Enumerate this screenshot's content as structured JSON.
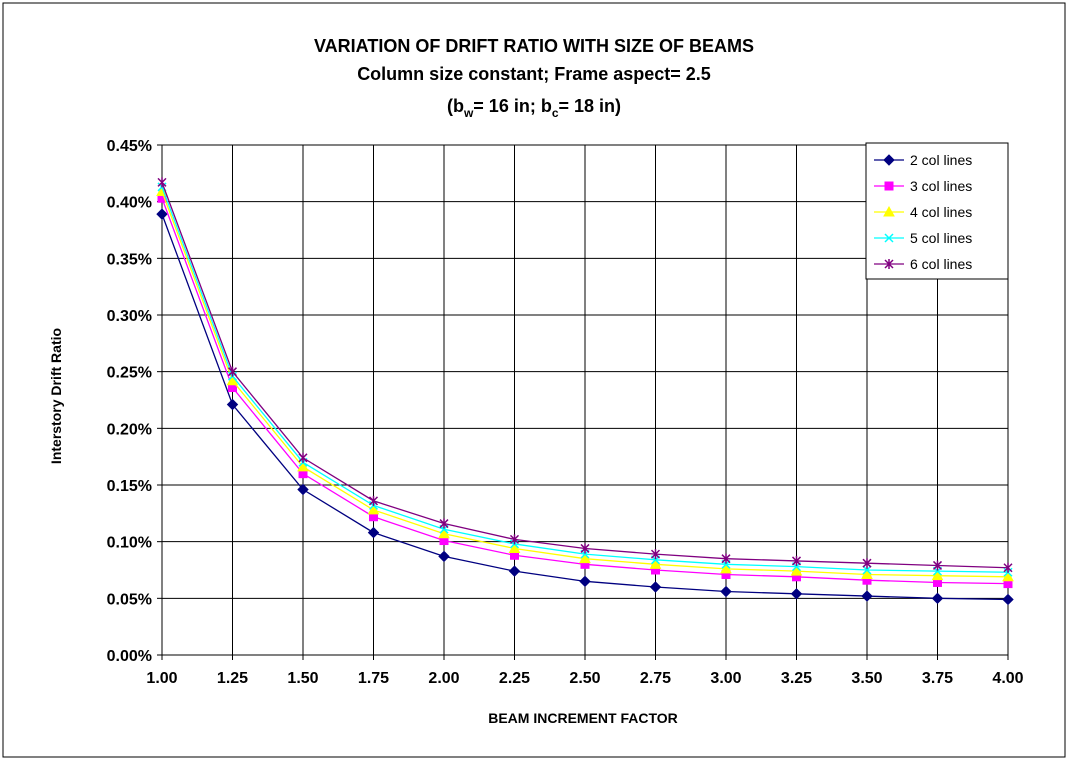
{
  "chart_data": {
    "type": "line",
    "title_lines": [
      "VARIATION OF DRIFT RATIO WITH SIZE OF BEAMS",
      "Column size constant; Frame aspect= 2.5"
    ],
    "subtitle": {
      "open": "(b",
      "sub1": "w",
      "mid": "= 16 in; b",
      "sub2": "c",
      "close": "= 18 in)"
    },
    "xlabel": "BEAM INCREMENT FACTOR",
    "ylabel": "Interstory Drift Ratio",
    "xlim": [
      1.0,
      4.0
    ],
    "ylim": [
      0.0,
      0.45
    ],
    "x_ticks": [
      "1.00",
      "1.25",
      "1.50",
      "1.75",
      "2.00",
      "2.25",
      "2.50",
      "2.75",
      "3.00",
      "3.25",
      "3.50",
      "3.75",
      "4.00"
    ],
    "y_ticks": [
      "0.00%",
      "0.05%",
      "0.10%",
      "0.15%",
      "0.20%",
      "0.25%",
      "0.30%",
      "0.35%",
      "0.40%",
      "0.45%"
    ],
    "y_unit": "percent",
    "grid": true,
    "legend_position": "top-right",
    "x": [
      1.0,
      1.25,
      1.5,
      1.75,
      2.0,
      2.25,
      2.5,
      2.75,
      3.0,
      3.25,
      3.5,
      3.75,
      4.0
    ],
    "series": [
      {
        "name": "2 col lines",
        "color": "#000080",
        "marker": "diamond",
        "values": [
          0.389,
          0.221,
          0.146,
          0.108,
          0.087,
          0.074,
          0.065,
          0.06,
          0.056,
          0.054,
          0.052,
          0.05,
          0.049
        ]
      },
      {
        "name": "3 col lines",
        "color": "#FF00FF",
        "marker": "square",
        "values": [
          0.403,
          0.236,
          0.16,
          0.122,
          0.101,
          0.088,
          0.08,
          0.075,
          0.071,
          0.069,
          0.066,
          0.064,
          0.063
        ]
      },
      {
        "name": "4 col lines",
        "color": "#FFFF00",
        "marker": "triangle",
        "values": [
          0.409,
          0.242,
          0.166,
          0.128,
          0.107,
          0.094,
          0.085,
          0.08,
          0.076,
          0.074,
          0.071,
          0.07,
          0.069
        ]
      },
      {
        "name": "5 col lines",
        "color": "#00FFFF",
        "marker": "x",
        "values": [
          0.413,
          0.246,
          0.17,
          0.132,
          0.111,
          0.098,
          0.089,
          0.084,
          0.08,
          0.078,
          0.075,
          0.074,
          0.073
        ]
      },
      {
        "name": "6 col lines",
        "color": "#800080",
        "marker": "star",
        "values": [
          0.417,
          0.25,
          0.174,
          0.136,
          0.116,
          0.102,
          0.094,
          0.089,
          0.085,
          0.083,
          0.081,
          0.079,
          0.077
        ]
      }
    ]
  }
}
